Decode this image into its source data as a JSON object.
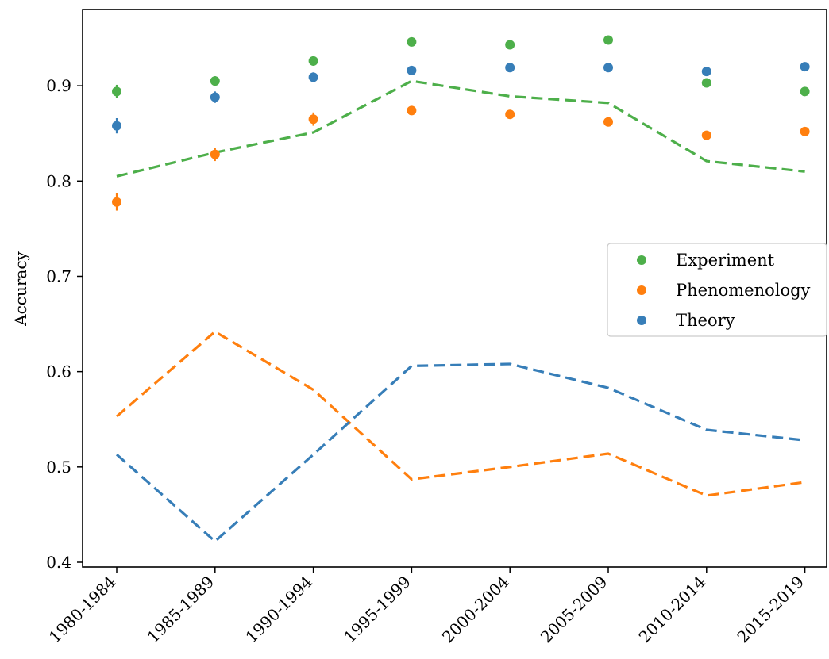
{
  "chart_data": {
    "type": "scatter",
    "title": "",
    "xlabel": "",
    "ylabel": "Accuracy",
    "ylim": [
      0.395,
      0.98
    ],
    "yticks": [
      "0.4",
      "0.5",
      "0.6",
      "0.7",
      "0.8",
      "0.9"
    ],
    "categories": [
      "1980-1984",
      "1985-1989",
      "1990-1994",
      "1995-1999",
      "2000-2004",
      "2005-2009",
      "2010-2014",
      "2015-2019"
    ],
    "grid": false,
    "legend_position": "center-right",
    "points": [
      {
        "name": "Experiment",
        "color": "#4daf4a",
        "values": [
          0.894,
          0.905,
          0.926,
          0.946,
          0.943,
          0.948,
          0.903,
          0.894
        ],
        "errors": [
          0.007,
          0.005,
          0.005,
          0.002,
          0.002,
          0.002,
          0.002,
          0.002
        ]
      },
      {
        "name": "Phenomenology",
        "color": "#ff7f0e",
        "values": [
          0.778,
          0.828,
          0.865,
          0.874,
          0.87,
          0.862,
          0.848,
          0.852
        ],
        "errors": [
          0.009,
          0.007,
          0.007,
          0.004,
          0.003,
          0.003,
          0.002,
          0.002
        ]
      },
      {
        "name": "Theory",
        "color": "#377eb8",
        "values": [
          0.858,
          0.888,
          0.909,
          0.916,
          0.919,
          0.919,
          0.915,
          0.92
        ],
        "errors": [
          0.008,
          0.006,
          0.005,
          0.002,
          0.002,
          0.002,
          0.002,
          0.002
        ]
      }
    ],
    "lines": [
      {
        "color": "#4daf4a",
        "values": [
          0.805,
          0.83,
          0.851,
          0.905,
          0.889,
          0.882,
          0.821,
          0.81
        ]
      },
      {
        "color": "#ff7f0e",
        "values": [
          0.553,
          0.642,
          0.581,
          0.487,
          0.5,
          0.514,
          0.47,
          0.484
        ]
      },
      {
        "color": "#377eb8",
        "values": [
          0.513,
          0.422,
          0.513,
          0.606,
          0.608,
          0.583,
          0.539,
          0.528
        ]
      }
    ]
  }
}
